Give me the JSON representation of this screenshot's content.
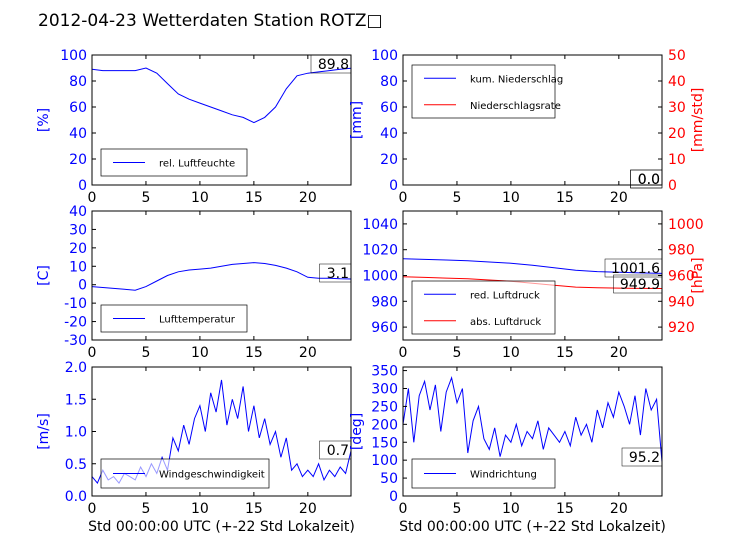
{
  "title": "2012-04-23 Wetterdaten Station ROTZ□",
  "colors": {
    "blue": "#0000ff",
    "red": "#ff0000",
    "black": "#000000"
  },
  "chart_data": [
    {
      "type": "line",
      "title": "",
      "ylabel": "[%]",
      "xlim": [
        0,
        24
      ],
      "ylim": [
        0,
        100
      ],
      "xticks": [
        0,
        5,
        10,
        15,
        20
      ],
      "yticks": [
        0,
        20,
        40,
        60,
        80,
        100
      ],
      "legend": "bottom-left",
      "value_label": "89.8",
      "series": [
        {
          "name": "rel. Luftfeuchte",
          "color": "#0000ff",
          "x": [
            0,
            1,
            2,
            3,
            4,
            5,
            6,
            7,
            8,
            9,
            10,
            11,
            12,
            13,
            14,
            15,
            16,
            17,
            18,
            19,
            20,
            21,
            22,
            23,
            24
          ],
          "y": [
            89,
            88,
            88,
            88,
            88,
            90,
            86,
            78,
            70,
            66,
            63,
            60,
            57,
            54,
            52,
            48,
            52,
            60,
            74,
            84,
            86,
            87,
            88,
            89,
            89.8
          ]
        }
      ]
    },
    {
      "type": "line",
      "title": "",
      "ylabel": "[mm]",
      "y2label": "[mm/std]",
      "xlim": [
        0,
        24
      ],
      "ylim": [
        0,
        100
      ],
      "y2lim": [
        0,
        50
      ],
      "xticks": [
        0,
        5,
        10,
        15,
        20
      ],
      "yticks": [
        0,
        20,
        40,
        60,
        80,
        100
      ],
      "y2ticks": [
        0,
        10,
        20,
        30,
        40,
        50
      ],
      "legend": "top-left",
      "value_label": "0.0",
      "value_label_2": "0.0",
      "series": [
        {
          "name": "kum. Niederschlag",
          "color": "#0000ff",
          "axis": "left",
          "x": [
            0,
            24
          ],
          "y": [
            0,
            0
          ]
        },
        {
          "name": "Niederschlagsrate",
          "color": "#ff0000",
          "axis": "right",
          "x": [
            0,
            24
          ],
          "y": [
            0,
            0
          ]
        }
      ]
    },
    {
      "type": "line",
      "title": "",
      "ylabel": "[C]",
      "xlim": [
        0,
        24
      ],
      "ylim": [
        -30,
        40
      ],
      "xticks": [
        0,
        5,
        10,
        15,
        20
      ],
      "yticks": [
        -30,
        -20,
        -10,
        0,
        10,
        20,
        30,
        40
      ],
      "legend": "bottom-left",
      "value_label": "3.1",
      "series": [
        {
          "name": "Lufttemperatur",
          "color": "#0000ff",
          "x": [
            0,
            1,
            2,
            3,
            4,
            5,
            6,
            7,
            8,
            9,
            10,
            11,
            12,
            13,
            14,
            15,
            16,
            17,
            18,
            19,
            20,
            21,
            22,
            23,
            24
          ],
          "y": [
            -1,
            -1.5,
            -2,
            -2.5,
            -3,
            -1,
            2,
            5,
            7,
            8,
            8.5,
            9,
            10,
            11,
            11.5,
            12,
            11.5,
            10.5,
            9,
            7,
            4,
            3.5,
            3.5,
            3.2,
            3.1
          ]
        }
      ]
    },
    {
      "type": "line",
      "title": "",
      "ylabel": "",
      "y2label": "[hPa]",
      "xlim": [
        0,
        24
      ],
      "ylim": [
        950,
        1050
      ],
      "y2lim": [
        910,
        1010
      ],
      "xticks": [
        0,
        5,
        10,
        15,
        20
      ],
      "yticks": [
        960,
        980,
        1000,
        1020,
        1040
      ],
      "y2ticks": [
        920,
        940,
        960,
        980,
        1000
      ],
      "legend": "bottom-left",
      "value_label": "1001.6",
      "value_label_2": "949.9",
      "series": [
        {
          "name": "red. Luftdruck",
          "color": "#0000ff",
          "axis": "left",
          "x": [
            0,
            2,
            4,
            6,
            8,
            10,
            12,
            14,
            16,
            18,
            20,
            22,
            24
          ],
          "y": [
            1013,
            1012.5,
            1012,
            1011.5,
            1010.5,
            1009.5,
            1008,
            1006,
            1004,
            1003,
            1002.5,
            1002,
            1001.6
          ]
        },
        {
          "name": "abs. Luftdruck",
          "color": "#ff0000",
          "axis": "right",
          "x": [
            0,
            2,
            4,
            6,
            8,
            10,
            12,
            14,
            16,
            18,
            20,
            22,
            24
          ],
          "y": [
            959,
            958.5,
            958,
            957.5,
            956.5,
            955.5,
            954,
            952.5,
            951,
            950.5,
            950.2,
            950,
            949.9
          ]
        }
      ]
    },
    {
      "type": "line",
      "title": "",
      "ylabel": "[m/s]",
      "xlabel": "Std 00:00:00 UTC (+-22 Std Lokalzeit)",
      "xlim": [
        0,
        24
      ],
      "ylim": [
        0,
        2
      ],
      "xticks": [
        0,
        5,
        10,
        15,
        20
      ],
      "yticks": [
        0.0,
        0.5,
        1.0,
        1.5,
        2.0
      ],
      "legend": "bottom-left",
      "value_label": "0.7",
      "series": [
        {
          "name": "Windgeschwindigkeit",
          "color": "#0000ff",
          "x": [
            0,
            0.5,
            1,
            1.5,
            2,
            2.5,
            3,
            3.5,
            4,
            4.5,
            5,
            5.5,
            6,
            6.5,
            7,
            7.5,
            8,
            8.5,
            9,
            9.5,
            10,
            10.5,
            11,
            11.5,
            12,
            12.5,
            13,
            13.5,
            14,
            14.5,
            15,
            15.5,
            16,
            16.5,
            17,
            17.5,
            18,
            18.5,
            19,
            19.5,
            20,
            20.5,
            21,
            21.5,
            22,
            22.5,
            23,
            23.5,
            24
          ],
          "y": [
            0.3,
            0.2,
            0.4,
            0.25,
            0.3,
            0.2,
            0.35,
            0.3,
            0.25,
            0.45,
            0.3,
            0.5,
            0.35,
            0.6,
            0.4,
            0.9,
            0.7,
            1.1,
            0.8,
            1.2,
            1.4,
            1.0,
            1.6,
            1.3,
            1.8,
            1.1,
            1.5,
            1.2,
            1.7,
            1.0,
            1.4,
            0.9,
            1.2,
            0.8,
            1.0,
            0.6,
            0.9,
            0.4,
            0.5,
            0.3,
            0.4,
            0.3,
            0.5,
            0.25,
            0.4,
            0.3,
            0.45,
            0.35,
            0.7
          ]
        }
      ]
    },
    {
      "type": "line",
      "title": "",
      "ylabel": "[deg]",
      "xlabel": "Std 00:00:00 UTC (+-22 Std Lokalzeit)",
      "xlim": [
        0,
        24
      ],
      "ylim": [
        0,
        360
      ],
      "xticks": [
        0,
        5,
        10,
        15,
        20
      ],
      "yticks": [
        0,
        50,
        100,
        150,
        200,
        250,
        300,
        350
      ],
      "legend": "bottom-left",
      "value_label": "95.2",
      "series": [
        {
          "name": "Windrichtung",
          "color": "#0000ff",
          "x": [
            0,
            0.5,
            1,
            1.5,
            2,
            2.5,
            3,
            3.5,
            4,
            4.5,
            5,
            5.5,
            6,
            6.5,
            7,
            7.5,
            8,
            8.5,
            9,
            9.5,
            10,
            10.5,
            11,
            11.5,
            12,
            12.5,
            13,
            13.5,
            14,
            14.5,
            15,
            15.5,
            16,
            16.5,
            17,
            17.5,
            18,
            18.5,
            19,
            19.5,
            20,
            20.5,
            21,
            21.5,
            22,
            22.5,
            23,
            23.5,
            24
          ],
          "y": [
            200,
            300,
            150,
            280,
            320,
            240,
            310,
            180,
            290,
            330,
            260,
            300,
            120,
            210,
            250,
            160,
            130,
            190,
            110,
            170,
            150,
            200,
            140,
            180,
            160,
            210,
            130,
            190,
            170,
            150,
            180,
            140,
            220,
            170,
            200,
            150,
            240,
            190,
            260,
            220,
            290,
            250,
            200,
            280,
            170,
            300,
            240,
            270,
            95.2
          ]
        }
      ]
    }
  ]
}
